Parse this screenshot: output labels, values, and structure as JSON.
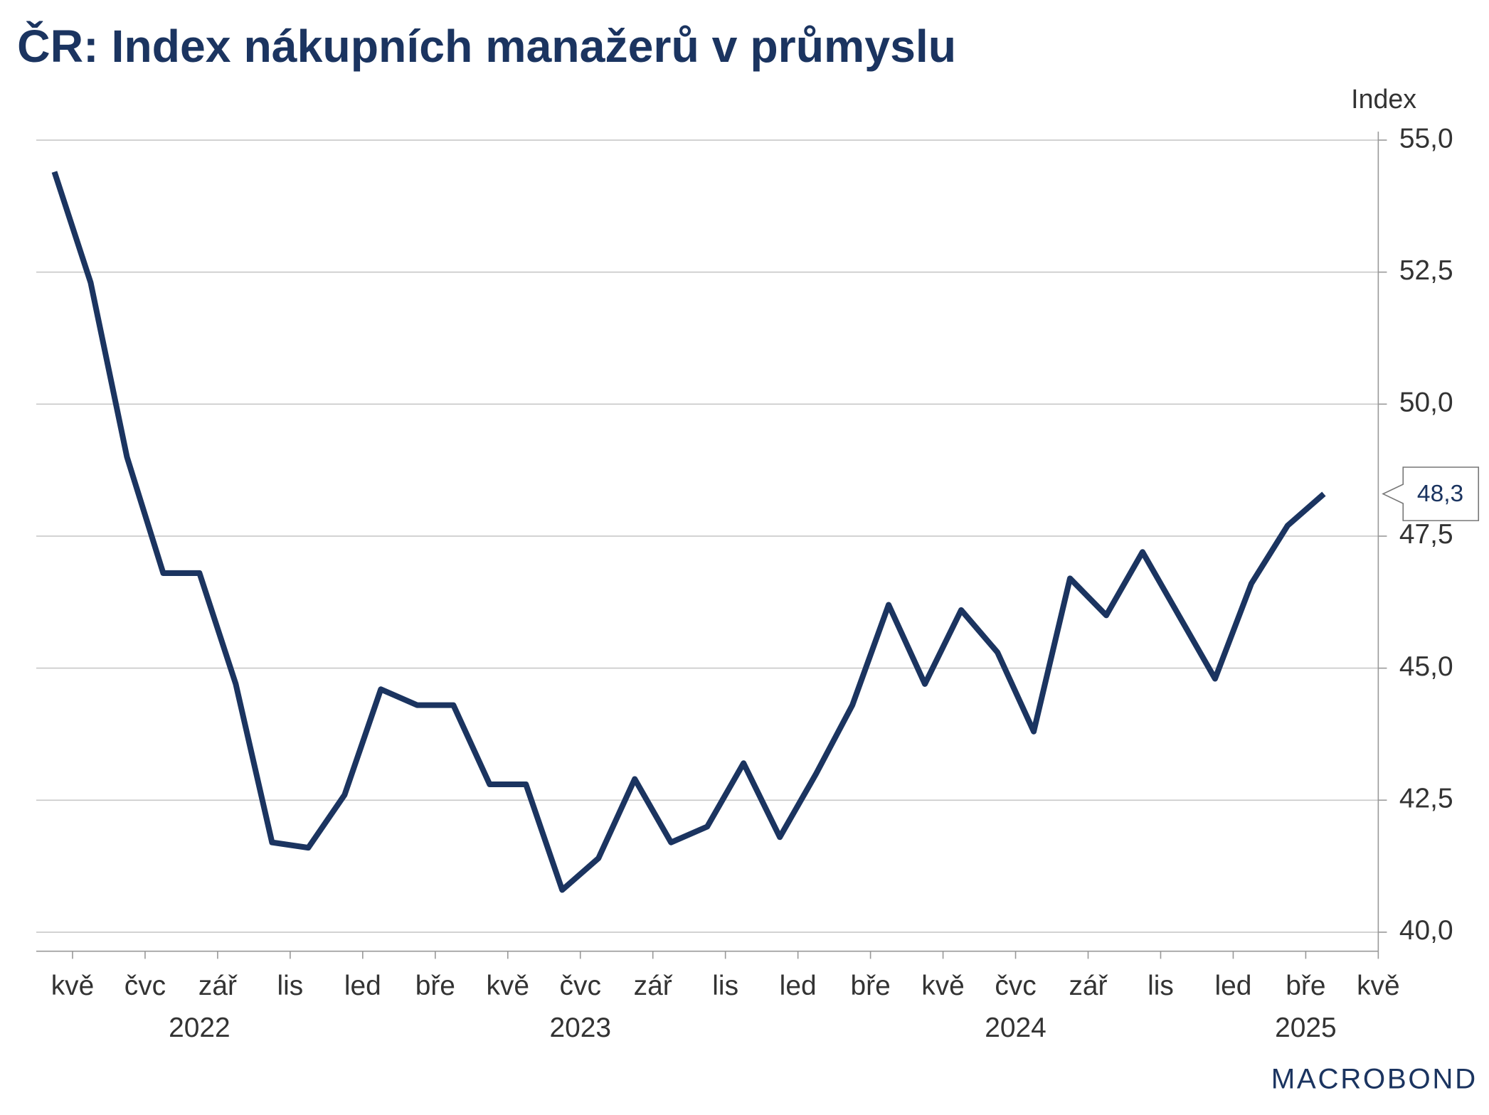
{
  "chart_data": {
    "type": "line",
    "title": "ČR: Index nákupních manažerů v průmyslu",
    "y_axis_label": "Index",
    "logo": "MACROBOND",
    "x": [
      "2022-04",
      "2022-05",
      "2022-06",
      "2022-07",
      "2022-08",
      "2022-09",
      "2022-10",
      "2022-11",
      "2022-12",
      "2023-01",
      "2023-02",
      "2023-03",
      "2023-04",
      "2023-05",
      "2023-06",
      "2023-07",
      "2023-08",
      "2023-09",
      "2023-10",
      "2023-11",
      "2023-12",
      "2024-01",
      "2024-02",
      "2024-03",
      "2024-04",
      "2024-05",
      "2024-06",
      "2024-07",
      "2024-08",
      "2024-09",
      "2024-10",
      "2024-11",
      "2024-12",
      "2025-01",
      "2025-02",
      "2025-03"
    ],
    "series": [
      {
        "name": "Index",
        "color": "#1b3460",
        "values": [
          54.4,
          52.3,
          49.0,
          46.8,
          46.8,
          44.7,
          41.7,
          41.6,
          42.6,
          44.6,
          44.3,
          44.3,
          42.8,
          42.8,
          40.8,
          41.4,
          42.9,
          41.7,
          42.0,
          43.2,
          41.8,
          43.0,
          44.3,
          46.2,
          44.7,
          46.1,
          45.3,
          43.8,
          46.7,
          46.0,
          47.2,
          46.0,
          44.8,
          46.6,
          47.7,
          48.3
        ],
        "value_labels": [
          null,
          null,
          null,
          null,
          null,
          null,
          null,
          null,
          null,
          null,
          null,
          null,
          null,
          null,
          null,
          null,
          null,
          null,
          null,
          null,
          null,
          null,
          null,
          null,
          null,
          null,
          null,
          null,
          null,
          null,
          null,
          null,
          null,
          null,
          null,
          "48,3"
        ]
      }
    ],
    "xlim": [
      "2022-04",
      "2025-05"
    ],
    "xticks": [
      {
        "value": "2022-05",
        "label": "kvě"
      },
      {
        "value": "2022-07",
        "label": "čvc"
      },
      {
        "value": "2022-09",
        "label": "zář"
      },
      {
        "value": "2022-11",
        "label": "lis"
      },
      {
        "value": "2023-01",
        "label": "led"
      },
      {
        "value": "2023-03",
        "label": "bře"
      },
      {
        "value": "2023-05",
        "label": "kvě"
      },
      {
        "value": "2023-07",
        "label": "čvc"
      },
      {
        "value": "2023-09",
        "label": "zář"
      },
      {
        "value": "2023-11",
        "label": "lis"
      },
      {
        "value": "2024-01",
        "label": "led"
      },
      {
        "value": "2024-03",
        "label": "bře"
      },
      {
        "value": "2024-05",
        "label": "kvě"
      },
      {
        "value": "2024-07",
        "label": "čvc"
      },
      {
        "value": "2024-09",
        "label": "zář"
      },
      {
        "value": "2024-11",
        "label": "lis"
      },
      {
        "value": "2025-01",
        "label": "led"
      },
      {
        "value": "2025-03",
        "label": "bře"
      },
      {
        "value": "2025-05",
        "label": "kvě"
      }
    ],
    "years": [
      "2022",
      "2023",
      "2024",
      "2025"
    ],
    "ylim": [
      39.64,
      55.16
    ],
    "yticks": [
      {
        "value": 40,
        "label": "40,0"
      },
      {
        "value": 42.5,
        "label": "42,5"
      },
      {
        "value": 45,
        "label": "45,0"
      },
      {
        "value": 47.5,
        "label": "47,5"
      },
      {
        "value": 50,
        "label": "50,0"
      },
      {
        "value": 52.5,
        "label": "52,5"
      },
      {
        "value": 55,
        "label": "55,0"
      }
    ],
    "grid": true
  }
}
